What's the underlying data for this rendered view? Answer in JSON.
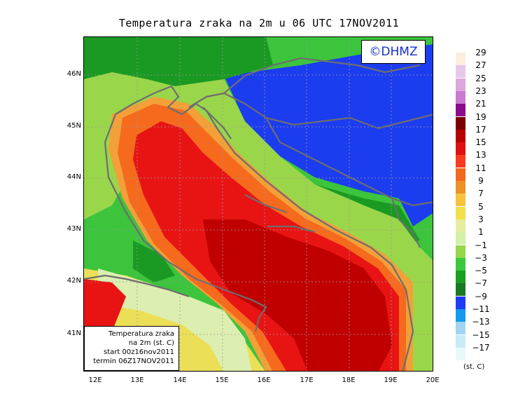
{
  "title": "Temperatura zraka na 2m u 06 UTC 17NOV2011",
  "logo_text": "©DHMZ",
  "info_box": {
    "line1": "Temperatura zraka",
    "line2": "na 2m (st. C)",
    "line3": "start 00z16nov2011",
    "line4": "termin 06Z17NOV2011"
  },
  "lat_labels": [
    "46N",
    "45N",
    "44N",
    "43N",
    "42N",
    "41N"
  ],
  "lon_labels": [
    "12E",
    "13E",
    "14E",
    "15E",
    "16E",
    "17E",
    "18E",
    "19E",
    "20E"
  ],
  "legend": {
    "unit": "(st. C)",
    "values": [
      "29",
      "27",
      "25",
      "23",
      "21",
      "19",
      "17",
      "15",
      "13",
      "11",
      "9",
      "7",
      "5",
      "3",
      "1",
      "−1",
      "−3",
      "−5",
      "−7",
      "−9",
      "−11",
      "−13",
      "−15",
      "−17"
    ],
    "colors": [
      "#fbeede",
      "#e8c8e8",
      "#dca8dc",
      "#c87ad0",
      "#8c0a8c",
      "#7a0000",
      "#b80000",
      "#e01010",
      "#fa3c1e",
      "#f2681e",
      "#ef9028",
      "#f6c240",
      "#f0e04a",
      "#e6eda0",
      "#d2f0a8",
      "#96d64a",
      "#3cc83c",
      "#1aa01e",
      "#177a1e",
      "#1c3cfa",
      "#149bf0",
      "#a0d4f0",
      "#c8ebf5",
      "#e8f8fb"
    ]
  },
  "map_colors": {
    "sea_deep": "#c00000",
    "sea_warm": "#e81414",
    "sea_mid": "#f66a1e",
    "sea_edge": "#f3a038",
    "coast_yellow": "#ecdf58",
    "coast_light": "#dcefb0",
    "land_light": "#9ad64a",
    "land_green": "#3cc43c",
    "land_dark": "#1a9a22",
    "land_cold": "#1c3cf0",
    "border": "#6e6e6e"
  }
}
